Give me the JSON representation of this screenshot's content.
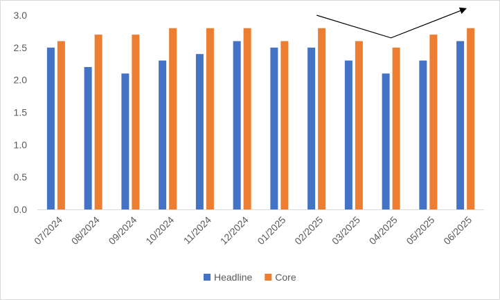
{
  "chart_data": {
    "type": "bar",
    "title": "",
    "xlabel": "",
    "ylabel": "",
    "ylim": [
      0,
      3.0
    ],
    "yticks": [
      "0.0",
      "0.5",
      "1.0",
      "1.5",
      "2.0",
      "2.5",
      "3.0"
    ],
    "grid": false,
    "legend_position": "bottom",
    "categories": [
      "07/2024",
      "08/2024",
      "09/2024",
      "10/2024",
      "11/2024",
      "12/2024",
      "01/2025",
      "02/2025",
      "03/2025",
      "04/2025",
      "05/2025",
      "06/2025"
    ],
    "series": [
      {
        "name": "Headline",
        "color": "#4472C4",
        "values": [
          2.5,
          2.2,
          2.1,
          2.3,
          2.4,
          2.6,
          2.5,
          2.5,
          2.3,
          2.1,
          2.3,
          2.6
        ]
      },
      {
        "name": "Core",
        "color": "#ED7D31",
        "values": [
          2.6,
          2.7,
          2.7,
          2.8,
          2.8,
          2.8,
          2.6,
          2.8,
          2.6,
          2.5,
          2.7,
          2.8
        ]
      }
    ],
    "annotation": {
      "type": "arrow",
      "points": [
        [
          "02/2025",
          3.0
        ],
        [
          "04/2025",
          2.65
        ],
        [
          "06/2025",
          3.1
        ]
      ]
    }
  }
}
